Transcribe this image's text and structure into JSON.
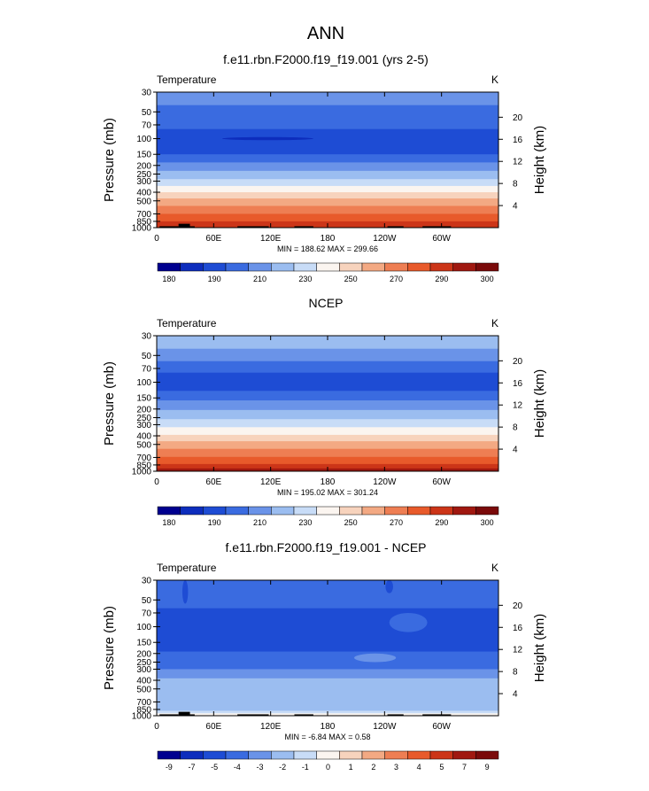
{
  "figure_title": "ANN",
  "chart_data": [
    {
      "type": "heatmap",
      "title": "f.e11.rbn.F2000.f19_f19.001 (yrs 2-5)",
      "left_label": "Temperature",
      "units": "K",
      "ylabel": "Pressure (mb)",
      "ylabel_right": "Height (km)",
      "x_ticks": [
        "0",
        "60E",
        "120E",
        "180",
        "120W",
        "60W"
      ],
      "x_tick_lon": [
        0,
        60,
        120,
        180,
        240,
        300
      ],
      "xlim": [
        0,
        360
      ],
      "y_ticks": [
        30,
        50,
        70,
        100,
        150,
        200,
        250,
        300,
        400,
        500,
        700,
        850,
        1000
      ],
      "y_range_mb": [
        30,
        1000
      ],
      "log_scale_y": true,
      "height_ticks_km": [
        20,
        16,
        12,
        8,
        4
      ],
      "minmax": "MIN = 188.62  MAX = 299.66",
      "colorbar_labels": [
        "180",
        "190",
        "210",
        "230",
        "250",
        "270",
        "290",
        "300"
      ],
      "colorbar_colors": [
        "#00008f",
        "#0d2dbd",
        "#1e4cd4",
        "#3a6be0",
        "#6a93e8",
        "#9bbdf0",
        "#c8dcf7",
        "#fbf5f0",
        "#f7d3bd",
        "#f3a983",
        "#ee7e53",
        "#e85a2b",
        "#cc3518",
        "#a01810",
        "#7a0a0a"
      ],
      "bands": [
        {
          "top_mb": 30,
          "color": "#6a93e8"
        },
        {
          "top_mb": 42,
          "color": "#3a6be0"
        },
        {
          "top_mb": 78,
          "color": "#1e4cd4"
        },
        {
          "top_mb": 150,
          "color": "#3a6be0"
        },
        {
          "top_mb": 185,
          "color": "#6a93e8"
        },
        {
          "top_mb": 230,
          "color": "#9bbdf0"
        },
        {
          "top_mb": 285,
          "color": "#c8dcf7"
        },
        {
          "top_mb": 340,
          "color": "#fbf5f0"
        },
        {
          "top_mb": 400,
          "color": "#f7d3bd"
        },
        {
          "top_mb": 470,
          "color": "#f3a983"
        },
        {
          "top_mb": 570,
          "color": "#ee7e53"
        },
        {
          "top_mb": 700,
          "color": "#e85a2b"
        },
        {
          "top_mb": 850,
          "color": "#cc3518"
        }
      ],
      "features": [
        {
          "lon_center": 117,
          "lon_halfwidth": 48,
          "mb_top": 96,
          "mb_bottom": 104,
          "color": "#0d2dbd"
        }
      ],
      "topography": [
        {
          "lon_start": 3,
          "lon_end": 23,
          "mb_top": 965
        },
        {
          "lon_start": 23,
          "lon_end": 35,
          "mb_top": 905
        },
        {
          "lon_start": 35,
          "lon_end": 40,
          "mb_top": 965
        },
        {
          "lon_start": 85,
          "lon_end": 118,
          "mb_top": 965
        },
        {
          "lon_start": 145,
          "lon_end": 165,
          "mb_top": 965
        },
        {
          "lon_start": 243,
          "lon_end": 260,
          "mb_top": 965
        },
        {
          "lon_start": 280,
          "lon_end": 310,
          "mb_top": 965
        }
      ]
    },
    {
      "type": "heatmap",
      "title": "NCEP",
      "left_label": "Temperature",
      "units": "K",
      "ylabel": "Pressure (mb)",
      "ylabel_right": "Height (km)",
      "x_ticks": [
        "0",
        "60E",
        "120E",
        "180",
        "120W",
        "60W"
      ],
      "x_tick_lon": [
        0,
        60,
        120,
        180,
        240,
        300
      ],
      "xlim": [
        0,
        360
      ],
      "y_ticks": [
        30,
        50,
        70,
        100,
        150,
        200,
        250,
        300,
        400,
        500,
        700,
        850,
        1000
      ],
      "y_range_mb": [
        30,
        1000
      ],
      "log_scale_y": true,
      "height_ticks_km": [
        20,
        16,
        12,
        8,
        4
      ],
      "minmax": "MIN = 195.02  MAX = 301.24",
      "colorbar_labels": [
        "180",
        "190",
        "210",
        "230",
        "250",
        "270",
        "290",
        "300"
      ],
      "colorbar_colors": [
        "#00008f",
        "#0d2dbd",
        "#1e4cd4",
        "#3a6be0",
        "#6a93e8",
        "#9bbdf0",
        "#c8dcf7",
        "#fbf5f0",
        "#f7d3bd",
        "#f3a983",
        "#ee7e53",
        "#e85a2b",
        "#cc3518",
        "#a01810",
        "#7a0a0a"
      ],
      "bands": [
        {
          "top_mb": 30,
          "color": "#9bbdf0"
        },
        {
          "top_mb": 42,
          "color": "#6a93e8"
        },
        {
          "top_mb": 58,
          "color": "#3a6be0"
        },
        {
          "top_mb": 78,
          "color": "#1e4cd4"
        },
        {
          "top_mb": 125,
          "color": "#3a6be0"
        },
        {
          "top_mb": 160,
          "color": "#6a93e8"
        },
        {
          "top_mb": 205,
          "color": "#9bbdf0"
        },
        {
          "top_mb": 260,
          "color": "#c8dcf7"
        },
        {
          "top_mb": 320,
          "color": "#fbf5f0"
        },
        {
          "top_mb": 390,
          "color": "#f7d3bd"
        },
        {
          "top_mb": 460,
          "color": "#f3a983"
        },
        {
          "top_mb": 560,
          "color": "#ee7e53"
        },
        {
          "top_mb": 690,
          "color": "#e85a2b"
        },
        {
          "top_mb": 830,
          "color": "#cc3518"
        },
        {
          "top_mb": 930,
          "color": "#a01810"
        }
      ],
      "features": [],
      "topography": []
    },
    {
      "type": "heatmap",
      "title": "f.e11.rbn.F2000.f19_f19.001 - NCEP",
      "left_label": "Temperature",
      "units": "K",
      "ylabel": "Pressure (mb)",
      "ylabel_right": "Height (km)",
      "x_ticks": [
        "0",
        "60E",
        "120E",
        "180",
        "120W",
        "60W"
      ],
      "x_tick_lon": [
        0,
        60,
        120,
        180,
        240,
        300
      ],
      "xlim": [
        0,
        360
      ],
      "y_ticks": [
        30,
        50,
        70,
        100,
        150,
        200,
        250,
        300,
        400,
        500,
        700,
        850,
        1000
      ],
      "y_range_mb": [
        30,
        1000
      ],
      "log_scale_y": true,
      "height_ticks_km": [
        20,
        16,
        12,
        8,
        4
      ],
      "minmax": "MIN =  -6.84  MAX =   0.58",
      "colorbar_labels": [
        "-9",
        "-7",
        "-5",
        "-4",
        "-3",
        "-2",
        "-1",
        "0",
        "1",
        "2",
        "3",
        "4",
        "5",
        "7",
        "9"
      ],
      "colorbar_colors": [
        "#00008f",
        "#0d2dbd",
        "#1e4cd4",
        "#3a6be0",
        "#6a93e8",
        "#9bbdf0",
        "#c8dcf7",
        "#fbf5f0",
        "#f7d3bd",
        "#f3a983",
        "#ee7e53",
        "#e85a2b",
        "#cc3518",
        "#a01810",
        "#7a0a0a"
      ],
      "bands": [
        {
          "top_mb": 30,
          "color": "#3a6be0"
        },
        {
          "top_mb": 62,
          "color": "#1e4cd4"
        },
        {
          "top_mb": 190,
          "color": "#3a6be0"
        },
        {
          "top_mb": 300,
          "color": "#6a93e8"
        },
        {
          "top_mb": 380,
          "color": "#9bbdf0"
        },
        {
          "top_mb": 880,
          "color": "#c8dcf7"
        },
        {
          "top_mb": 940,
          "color": "#fbf5f0"
        }
      ],
      "features": [
        {
          "lon_center": 265,
          "lon_halfwidth": 20,
          "mb_top": 70,
          "mb_bottom": 115,
          "color": "#3a6be0"
        },
        {
          "lon_center": 30,
          "lon_halfwidth": 3,
          "mb_top": 30,
          "mb_bottom": 55,
          "color": "#1e4cd4"
        },
        {
          "lon_center": 245,
          "lon_halfwidth": 4,
          "mb_top": 30,
          "mb_bottom": 42,
          "color": "#1e4cd4"
        },
        {
          "lon_center": 230,
          "lon_halfwidth": 22,
          "mb_top": 200,
          "mb_bottom": 250,
          "color": "#6a93e8"
        }
      ],
      "topography": [
        {
          "lon_start": 3,
          "lon_end": 23,
          "mb_top": 965
        },
        {
          "lon_start": 23,
          "lon_end": 35,
          "mb_top": 905
        },
        {
          "lon_start": 35,
          "lon_end": 40,
          "mb_top": 965
        },
        {
          "lon_start": 85,
          "lon_end": 118,
          "mb_top": 965
        },
        {
          "lon_start": 145,
          "lon_end": 165,
          "mb_top": 965
        },
        {
          "lon_start": 243,
          "lon_end": 260,
          "mb_top": 965
        },
        {
          "lon_start": 280,
          "lon_end": 310,
          "mb_top": 965
        }
      ]
    }
  ]
}
